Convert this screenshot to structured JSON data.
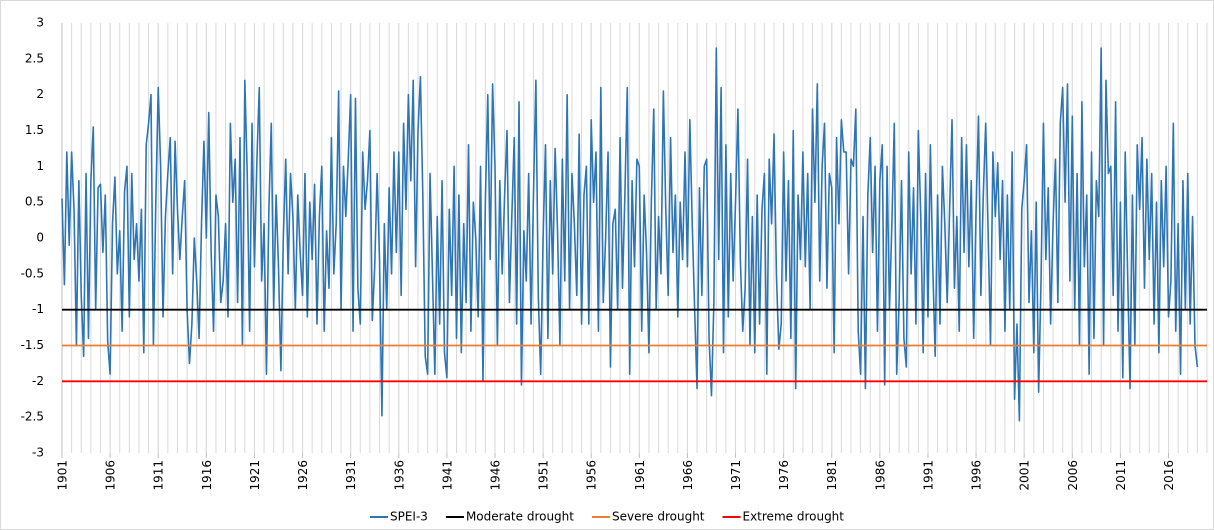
{
  "chart_data": {
    "type": "line",
    "xlim": [
      1901,
      2020
    ],
    "ylim": [
      -3,
      3
    ],
    "xticks": [
      1901,
      1906,
      1911,
      1916,
      1921,
      1926,
      1931,
      1936,
      1941,
      1946,
      1951,
      1956,
      1961,
      1966,
      1971,
      1976,
      1981,
      1986,
      1991,
      1996,
      2001,
      2006,
      2011,
      2016
    ],
    "yticks": [
      -3,
      -2.5,
      -2,
      -1.5,
      -1,
      -0.5,
      0,
      0.5,
      1,
      1.5,
      2,
      2.5,
      3
    ],
    "grid": true,
    "legend": "bottom",
    "x": [
      1901,
      1901.25,
      1901.5,
      1901.75,
      1902,
      1902.25,
      1902.5,
      1902.75,
      1903,
      1903.25,
      1903.5,
      1903.75,
      1904,
      1904.25,
      1904.5,
      1904.75,
      1905,
      1905.25,
      1905.5,
      1905.75,
      1906,
      1906.25,
      1906.5,
      1906.75,
      1907,
      1907.25,
      1907.5,
      1907.75,
      1908,
      1908.25,
      1908.5,
      1908.75,
      1909,
      1909.25,
      1909.5,
      1909.75,
      1910,
      1910.25,
      1910.5,
      1910.75,
      1911,
      1911.25,
      1911.5,
      1911.75,
      1912,
      1912.25,
      1912.5,
      1912.75,
      1913,
      1913.25,
      1913.5,
      1913.75,
      1914,
      1914.25,
      1914.5,
      1914.75,
      1915,
      1915.25,
      1915.5,
      1915.75,
      1916,
      1916.25,
      1916.5,
      1916.75,
      1917,
      1917.25,
      1917.5,
      1917.75,
      1918,
      1918.25,
      1918.5,
      1918.75,
      1919,
      1919.25,
      1919.5,
      1919.75,
      1920,
      1920.25,
      1920.5,
      1920.75,
      1921,
      1921.25,
      1921.5,
      1921.75,
      1922,
      1922.25,
      1922.5,
      1922.75,
      1923,
      1923.25,
      1923.5,
      1923.75,
      1924,
      1924.25,
      1924.5,
      1924.75,
      1925,
      1925.25,
      1925.5,
      1925.75,
      1926,
      1926.25,
      1926.5,
      1926.75,
      1927,
      1927.25,
      1927.5,
      1927.75,
      1928,
      1928.25,
      1928.5,
      1928.75,
      1929,
      1929.25,
      1929.5,
      1929.75,
      1930,
      1930.25,
      1930.5,
      1930.75,
      1931,
      1931.25,
      1931.5,
      1931.75,
      1932,
      1932.25,
      1932.5,
      1932.75,
      1933,
      1933.25,
      1933.5,
      1933.75,
      1934,
      1934.25,
      1934.5,
      1934.75,
      1935,
      1935.25,
      1935.5,
      1935.75,
      1936,
      1936.25,
      1936.5,
      1936.75,
      1937,
      1937.25,
      1937.5,
      1937.75,
      1938,
      1938.25,
      1938.5,
      1938.75,
      1939,
      1939.25,
      1939.5,
      1939.75,
      1940,
      1940.25,
      1940.5,
      1940.75,
      1941,
      1941.25,
      1941.5,
      1941.75,
      1942,
      1942.25,
      1942.5,
      1942.75,
      1943,
      1943.25,
      1943.5,
      1943.75,
      1944,
      1944.25,
      1944.5,
      1944.75,
      1945,
      1945.25,
      1945.5,
      1945.75,
      1946,
      1946.25,
      1946.5,
      1946.75,
      1947,
      1947.25,
      1947.5,
      1947.75,
      1948,
      1948.25,
      1948.5,
      1948.75,
      1949,
      1949.25,
      1949.5,
      1949.75,
      1950,
      1950.25,
      1950.5,
      1950.75,
      1951,
      1951.25,
      1951.5,
      1951.75,
      1952,
      1952.25,
      1952.5,
      1952.75,
      1953,
      1953.25,
      1953.5,
      1953.75,
      1954,
      1954.25,
      1954.5,
      1954.75,
      1955,
      1955.25,
      1955.5,
      1955.75,
      1956,
      1956.25,
      1956.5,
      1956.75,
      1957,
      1957.25,
      1957.5,
      1957.75,
      1958,
      1958.25,
      1958.5,
      1958.75,
      1959,
      1959.25,
      1959.5,
      1959.75,
      1960,
      1960.25,
      1960.5,
      1960.75,
      1961,
      1961.25,
      1961.5,
      1961.75,
      1962,
      1962.25,
      1962.5,
      1962.75,
      1963,
      1963.25,
      1963.5,
      1963.75,
      1964,
      1964.25,
      1964.5,
      1964.75,
      1965,
      1965.25,
      1965.5,
      1965.75,
      1966,
      1966.25,
      1966.5,
      1966.75,
      1967,
      1967.25,
      1967.5,
      1967.75,
      1968,
      1968.25,
      1968.5,
      1968.75,
      1969,
      1969.25,
      1969.5,
      1969.75,
      1970,
      1970.25,
      1970.5,
      1970.75,
      1971,
      1971.25,
      1971.5,
      1971.75,
      1972,
      1972.25,
      1972.5,
      1972.75,
      1973,
      1973.25,
      1973.5,
      1973.75,
      1974,
      1974.25,
      1974.5,
      1974.75,
      1975,
      1975.25,
      1975.5,
      1975.75,
      1976,
      1976.25,
      1976.5,
      1976.75,
      1977,
      1977.25,
      1977.5,
      1977.75,
      1978,
      1978.25,
      1978.5,
      1978.75,
      1979,
      1979.25,
      1979.5,
      1979.75,
      1980,
      1980.25,
      1980.5,
      1980.75,
      1981,
      1981.25,
      1981.5,
      1981.75,
      1982,
      1982.25,
      1982.5,
      1982.75,
      1983,
      1983.25,
      1983.5,
      1983.75,
      1984,
      1984.25,
      1984.5,
      1984.75,
      1985,
      1985.25,
      1985.5,
      1985.75,
      1986,
      1986.25,
      1986.5,
      1986.75,
      1987,
      1987.25,
      1987.5,
      1987.75,
      1988,
      1988.25,
      1988.5,
      1988.75,
      1989,
      1989.25,
      1989.5,
      1989.75,
      1990,
      1990.25,
      1990.5,
      1990.75,
      1991,
      1991.25,
      1991.5,
      1991.75,
      1992,
      1992.25,
      1992.5,
      1992.75,
      1993,
      1993.25,
      1993.5,
      1993.75,
      1994,
      1994.25,
      1994.5,
      1994.75,
      1995,
      1995.25,
      1995.5,
      1995.75,
      1996,
      1996.25,
      1996.5,
      1996.75,
      1997,
      1997.25,
      1997.5,
      1997.75,
      1998,
      1998.25,
      1998.5,
      1998.75,
      1999,
      1999.25,
      1999.5,
      1999.75,
      2000,
      2000.25,
      2000.5,
      2000.75,
      2001,
      2001.25,
      2001.5,
      2001.75,
      2002,
      2002.25,
      2002.5,
      2002.75,
      2003,
      2003.25,
      2003.5,
      2003.75,
      2004,
      2004.25,
      2004.5,
      2004.75,
      2005,
      2005.25,
      2005.5,
      2005.75,
      2006,
      2006.25,
      2006.5,
      2006.75,
      2007,
      2007.25,
      2007.5,
      2007.75,
      2008,
      2008.25,
      2008.5,
      2008.75,
      2009,
      2009.25,
      2009.5,
      2009.75,
      2010,
      2010.25,
      2010.5,
      2010.75,
      2011,
      2011.25,
      2011.5,
      2011.75,
      2012,
      2012.25,
      2012.5,
      2012.75,
      2013,
      2013.25,
      2013.5,
      2013.75,
      2014,
      2014.25,
      2014.5,
      2014.75,
      2015,
      2015.25,
      2015.5,
      2015.75,
      2016,
      2016.25,
      2016.5,
      2016.75,
      2017,
      2017.25,
      2017.5,
      2017.75,
      2018,
      2018.25,
      2018.5,
      2018.75,
      2019
    ],
    "series": [
      {
        "name": "SPEI-3",
        "color": "#2e75b6",
        "values": [
          0.55,
          -0.65,
          1.2,
          -0.1,
          1.2,
          0.4,
          -1.5,
          0.8,
          -0.8,
          -1.65,
          0.9,
          -1.4,
          0.8,
          1.55,
          -1.0,
          0.7,
          0.75,
          -0.2,
          0.6,
          -1.45,
          -1.9,
          0.2,
          0.85,
          -0.5,
          0.1,
          -1.3,
          0.65,
          1.0,
          -1.1,
          0.9,
          -0.3,
          0.2,
          -0.6,
          0.4,
          -1.6,
          1.3,
          1.6,
          2.0,
          -1.5,
          0.5,
          2.1,
          1.0,
          -1.1,
          0.3,
          0.9,
          1.4,
          -0.5,
          1.35,
          0.4,
          -0.3,
          0.3,
          0.8,
          -1.0,
          -1.75,
          -1.2,
          0.0,
          -0.6,
          -1.4,
          0.2,
          1.35,
          0.0,
          1.75,
          -0.2,
          -1.3,
          0.6,
          0.3,
          -0.9,
          -0.6,
          0.2,
          -1.1,
          1.6,
          0.5,
          1.1,
          -0.9,
          1.4,
          -1.5,
          2.2,
          0.9,
          -1.3,
          1.6,
          -0.4,
          1.05,
          2.1,
          -0.6,
          0.2,
          -1.9,
          0.4,
          1.6,
          -1.0,
          0.6,
          -0.4,
          -1.85,
          0.0,
          1.1,
          -0.5,
          0.9,
          0.3,
          -1.0,
          0.6,
          -0.2,
          -0.8,
          0.9,
          -1.1,
          0.5,
          -0.3,
          0.75,
          -1.2,
          0.3,
          1.0,
          -1.3,
          0.1,
          -0.7,
          1.4,
          -0.5,
          0.2,
          2.05,
          -1.0,
          1.0,
          0.3,
          1.1,
          2.0,
          -1.3,
          1.95,
          -0.7,
          -1.2,
          1.2,
          0.4,
          0.8,
          1.5,
          -1.15,
          -0.4,
          0.9,
          -0.3,
          -2.48,
          0.2,
          -1.0,
          0.7,
          -0.5,
          1.2,
          -0.2,
          1.2,
          -0.8,
          1.6,
          0.4,
          2.0,
          0.8,
          2.2,
          -0.4,
          1.5,
          2.25,
          0.6,
          -1.65,
          -1.9,
          0.9,
          -0.5,
          -1.9,
          0.3,
          -1.2,
          0.8,
          -1.6,
          -1.95,
          0.4,
          -0.8,
          1.0,
          -1.4,
          0.6,
          -1.6,
          0.2,
          -0.9,
          1.3,
          -1.3,
          0.5,
          0.0,
          -1.1,
          1.0,
          -2.0,
          0.5,
          2.0,
          -0.3,
          2.15,
          1.0,
          -1.5,
          0.8,
          -0.5,
          0.6,
          1.5,
          -0.9,
          0.3,
          1.4,
          -1.2,
          1.9,
          -2.05,
          0.1,
          -0.6,
          0.9,
          -1.2,
          0.6,
          2.2,
          -0.8,
          -1.9,
          0.0,
          1.3,
          -1.4,
          0.8,
          -0.5,
          1.25,
          0.1,
          -1.5,
          1.1,
          -0.6,
          2.0,
          -1.0,
          0.9,
          0.2,
          -0.8,
          1.45,
          -1.2,
          0.6,
          1.0,
          -1.2,
          1.65,
          0.5,
          1.2,
          -1.3,
          2.1,
          -0.9,
          0.0,
          1.2,
          -1.8,
          0.2,
          0.4,
          -1.0,
          1.4,
          -0.7,
          0.6,
          2.1,
          -1.9,
          0.8,
          -0.4,
          1.1,
          1.0,
          -1.3,
          0.6,
          -0.2,
          -1.6,
          0.5,
          1.8,
          -1.0,
          0.3,
          -0.5,
          2.05,
          0.4,
          -0.8,
          1.4,
          -0.2,
          0.6,
          -1.1,
          0.5,
          -0.3,
          1.2,
          -0.4,
          1.65,
          0.2,
          -1.0,
          -2.1,
          0.7,
          -0.8,
          1.0,
          1.1,
          -1.4,
          -2.2,
          -0.9,
          2.65,
          -0.3,
          2.1,
          -1.6,
          1.3,
          -1.1,
          0.9,
          -0.6,
          0.5,
          1.8,
          -0.3,
          -1.3,
          -0.7,
          1.1,
          -1.5,
          0.3,
          -1.6,
          0.6,
          -1.2,
          0.4,
          0.9,
          -1.9,
          1.1,
          0.2,
          1.45,
          -0.5,
          -1.55,
          -1.2,
          1.2,
          -0.6,
          0.8,
          -1.4,
          1.5,
          -2.1,
          0.6,
          -0.3,
          1.2,
          -0.4,
          0.9,
          -1.0,
          1.8,
          0.5,
          2.15,
          -0.6,
          1.0,
          1.6,
          -0.7,
          0.9,
          0.7,
          -1.6,
          1.4,
          0.2,
          1.65,
          1.2,
          1.2,
          -0.5,
          1.1,
          1.0,
          1.8,
          -1.3,
          -1.9,
          0.3,
          -2.1,
          0.6,
          1.4,
          -0.2,
          1.0,
          -1.3,
          0.8,
          1.3,
          -2.05,
          1.0,
          -1.0,
          0.2,
          1.6,
          -1.9,
          -0.9,
          0.8,
          -1.4,
          -1.8,
          1.2,
          -0.5,
          0.7,
          -1.2,
          1.5,
          0.3,
          -1.6,
          0.9,
          -1.1,
          1.3,
          -0.4,
          -1.65,
          0.6,
          -1.2,
          1.0,
          0.2,
          -0.9,
          0.4,
          1.65,
          -0.7,
          0.3,
          -1.3,
          1.4,
          -0.2,
          1.3,
          -0.4,
          0.8,
          -1.4,
          0.4,
          1.7,
          -0.8,
          0.6,
          1.6,
          0.1,
          -1.5,
          1.2,
          0.3,
          1.05,
          -0.3,
          0.8,
          -1.3,
          0.6,
          -1.0,
          1.2,
          -2.25,
          -1.2,
          -2.55,
          0.4,
          0.8,
          1.3,
          -0.9,
          0.1,
          -1.6,
          0.5,
          -2.15,
          -0.6,
          1.6,
          -0.3,
          0.7,
          -1.2,
          0.2,
          1.1,
          -0.9,
          1.6,
          2.1,
          0.5,
          2.15,
          -0.6,
          1.7,
          -1.0,
          0.9,
          -1.5,
          1.9,
          -0.4,
          0.6,
          -1.9,
          1.2,
          -1.4,
          0.8,
          0.3,
          2.65,
          -1.5,
          2.2,
          0.9,
          1.0,
          -0.8,
          1.9,
          -1.3,
          0.5,
          -1.95,
          1.2,
          -0.5,
          -2.1,
          0.6,
          -1.5,
          1.3,
          0.4,
          1.4,
          -0.7,
          1.1,
          -0.3,
          0.9,
          -1.2,
          0.5,
          -1.6,
          0.8,
          -0.4,
          1.0,
          -1.1,
          -0.6,
          1.6,
          -1.3,
          0.2,
          -1.9,
          0.8,
          -1.0,
          0.9,
          -1.2,
          0.3,
          -1.5,
          -1.8
        ]
      }
    ],
    "reference_lines": [
      {
        "name": "Moderate drought",
        "color": "#000000",
        "value": -1
      },
      {
        "name": "Severe drought",
        "color": "#ed7d31",
        "value": -1.5
      },
      {
        "name": "Extreme drought",
        "color": "#ff0000",
        "value": -2
      }
    ]
  }
}
